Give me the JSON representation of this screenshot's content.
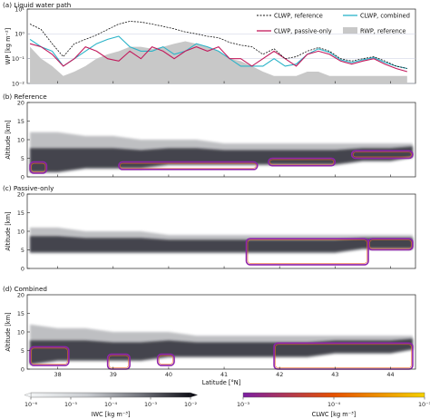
{
  "colors": {
    "reference_line": "#111111",
    "combined_line": "#2ab3c8",
    "passive_line": "#c2185b",
    "rwp_fill": "#c8c8c8",
    "iwc_dark": "#101018",
    "iwc_light": "#f2f4f5",
    "clwc_low": "#7b1fa2",
    "clwc_mid": "#e65100",
    "clwc_high": "#f5d000"
  },
  "panels": {
    "a_title": "(a) Liquid water path",
    "b_title": "(b) Reference",
    "c_title": "(c) Passive-only",
    "d_title": "(d) Combined"
  },
  "axes": {
    "lwp_ylabel": "WP [kg m⁻²]",
    "altitude_ylabel": "Altitude [km]",
    "xlabel": "Latitude [°N]",
    "lwp_yticks": [
      "10¹",
      "10⁰",
      "10⁻¹",
      "10⁻²"
    ],
    "alt_yticks": [
      "0",
      "5",
      "10",
      "15",
      "20"
    ],
    "xticks": [
      "38",
      "39",
      "40",
      "41",
      "42",
      "43",
      "44"
    ]
  },
  "legend": {
    "reference": "CLWP,  reference",
    "combined": "CLWP, combined",
    "passive": "CLWP, passive-only",
    "rwp": "RWP, reference"
  },
  "colorbars": {
    "iwc_label": "IWC [kg m⁻³]",
    "iwc_ticks": [
      "10⁻⁶",
      "10⁻⁵",
      "10⁻⁴",
      "10⁻³",
      "10⁻²"
    ],
    "clwc_label": "CLWC [kg m⁻³]",
    "clwc_ticks": [
      "10⁻³",
      "10⁻⁴",
      "10⁻³"
    ]
  },
  "chart_data": [
    {
      "type": "line",
      "panel": "a",
      "title": "(a) Liquid water path",
      "ylabel": "WP [kg m⁻²]",
      "yscale": "log",
      "ylim": [
        0.01,
        10
      ],
      "xlim": [
        37.45,
        44.45
      ],
      "x": [
        37.5,
        37.7,
        37.9,
        38.1,
        38.3,
        38.5,
        38.7,
        38.9,
        39.1,
        39.3,
        39.5,
        39.7,
        39.9,
        40.1,
        40.3,
        40.5,
        40.7,
        40.9,
        41.1,
        41.3,
        41.5,
        41.7,
        41.9,
        42.1,
        42.3,
        42.5,
        42.7,
        42.9,
        43.1,
        43.3,
        43.5,
        43.7,
        43.9,
        44.1,
        44.3
      ],
      "series": [
        {
          "name": "CLWP,  reference",
          "values": [
            2.5,
            1.5,
            0.4,
            0.12,
            0.4,
            0.6,
            0.9,
            1.5,
            2.5,
            3.2,
            3.0,
            2.5,
            2.0,
            1.6,
            1.2,
            1.0,
            0.8,
            0.7,
            0.45,
            0.35,
            0.3,
            0.15,
            0.25,
            0.1,
            0.12,
            0.2,
            0.28,
            0.2,
            0.1,
            0.08,
            0.1,
            0.12,
            0.08,
            0.05,
            0.04
          ]
        },
        {
          "name": "CLWP, combined",
          "values": [
            0.6,
            0.3,
            0.2,
            0.05,
            0.1,
            0.2,
            0.4,
            0.6,
            0.8,
            0.3,
            0.2,
            0.2,
            0.3,
            0.15,
            0.2,
            0.4,
            0.3,
            0.2,
            0.1,
            0.05,
            0.05,
            0.05,
            0.1,
            0.05,
            0.06,
            0.15,
            0.25,
            0.18,
            0.09,
            0.07,
            0.09,
            0.11,
            0.07,
            0.05,
            0.04
          ]
        },
        {
          "name": "CLWP, passive-only",
          "values": [
            0.4,
            0.3,
            0.15,
            0.05,
            0.1,
            0.3,
            0.2,
            0.1,
            0.08,
            0.2,
            0.1,
            0.3,
            0.2,
            0.1,
            0.2,
            0.3,
            0.2,
            0.3,
            0.1,
            0.1,
            0.05,
            0.1,
            0.2,
            0.1,
            0.05,
            0.15,
            0.2,
            0.15,
            0.08,
            0.06,
            0.08,
            0.1,
            0.06,
            0.04,
            0.03
          ]
        },
        {
          "name": "RWP, reference",
          "values": [
            0.3,
            0.1,
            0.05,
            0.02,
            0.03,
            0.05,
            0.1,
            0.15,
            0.2,
            0.3,
            0.3,
            0.25,
            0.3,
            0.4,
            0.5,
            0.4,
            0.3,
            0.2,
            0.1,
            0.08,
            0.05,
            0.03,
            0.02,
            0.02,
            0.02,
            0.03,
            0.03,
            0.02,
            0.02,
            0.02,
            0.02,
            0.02,
            0.02,
            0.02,
            0.02
          ]
        }
      ]
    },
    {
      "type": "heatmap",
      "panel": "b",
      "title": "(b) Reference",
      "ylabel": "Altitude [km]",
      "ylim": [
        0,
        20
      ],
      "xlim": [
        37.45,
        44.45
      ],
      "iwc_layer": {
        "x": [
          37.5,
          38.0,
          38.5,
          39.0,
          39.5,
          40.0,
          40.5,
          41.0,
          41.5,
          42.0,
          42.5,
          43.0,
          43.5,
          44.0,
          44.4
        ],
        "bottom_km": [
          1,
          1,
          2,
          2,
          2,
          3,
          3,
          3,
          3,
          3,
          3,
          3,
          4,
          4,
          5
        ],
        "top_km": [
          12,
          12,
          11,
          11,
          10,
          10,
          10,
          9,
          9,
          9,
          9,
          9,
          9,
          9,
          9
        ]
      },
      "liquid_regions": [
        {
          "x": [
            37.5,
            37.8
          ],
          "alt_km": [
            1,
            4
          ]
        },
        {
          "x": [
            39.1,
            41.6
          ],
          "alt_km": [
            2,
            4
          ]
        },
        {
          "x": [
            41.8,
            43.0
          ],
          "alt_km": [
            3,
            5
          ]
        },
        {
          "x": [
            43.3,
            44.4
          ],
          "alt_km": [
            5,
            7
          ]
        }
      ]
    },
    {
      "type": "heatmap",
      "panel": "c",
      "title": "(c) Passive-only",
      "ylabel": "Altitude [km]",
      "ylim": [
        0,
        20
      ],
      "xlim": [
        37.45,
        44.45
      ],
      "iwc_layer": {
        "x": [
          37.5,
          38.0,
          38.5,
          39.0,
          39.5,
          40.0,
          40.5,
          41.0,
          41.5,
          42.0,
          42.5,
          43.0,
          43.5,
          44.0,
          44.4
        ],
        "bottom_km": [
          4,
          4,
          4,
          4,
          4,
          4,
          4,
          4,
          4,
          4,
          4,
          4,
          5,
          5,
          5
        ],
        "top_km": [
          11,
          11,
          10,
          10,
          10,
          9,
          9,
          9,
          9,
          9,
          9,
          9,
          9,
          9,
          9
        ]
      },
      "liquid_regions": [
        {
          "x": [
            41.4,
            43.6
          ],
          "alt_km": [
            1,
            8
          ]
        },
        {
          "x": [
            43.6,
            44.4
          ],
          "alt_km": [
            5,
            8
          ]
        }
      ]
    },
    {
      "type": "heatmap",
      "panel": "d",
      "title": "(d) Combined",
      "ylabel": "Altitude [km]",
      "ylim": [
        0,
        20
      ],
      "xlim": [
        37.45,
        44.45
      ],
      "iwc_layer": {
        "x": [
          37.5,
          38.0,
          38.5,
          39.0,
          39.5,
          40.0,
          40.5,
          41.0,
          41.5,
          42.0,
          42.5,
          43.0,
          43.5,
          44.0,
          44.4
        ],
        "bottom_km": [
          1,
          2,
          2,
          2,
          2,
          3,
          3,
          3,
          3,
          3,
          3,
          4,
          4,
          4,
          5
        ],
        "top_km": [
          12,
          11,
          11,
          10,
          10,
          10,
          9,
          9,
          9,
          9,
          9,
          9,
          9,
          9,
          9
        ]
      },
      "liquid_regions": [
        {
          "x": [
            37.5,
            38.2
          ],
          "alt_km": [
            1,
            6
          ]
        },
        {
          "x": [
            38.9,
            39.3
          ],
          "alt_km": [
            0,
            4
          ]
        },
        {
          "x": [
            39.8,
            40.1
          ],
          "alt_km": [
            1,
            4
          ]
        },
        {
          "x": [
            41.9,
            44.4
          ],
          "alt_km": [
            0,
            7
          ]
        }
      ]
    }
  ]
}
